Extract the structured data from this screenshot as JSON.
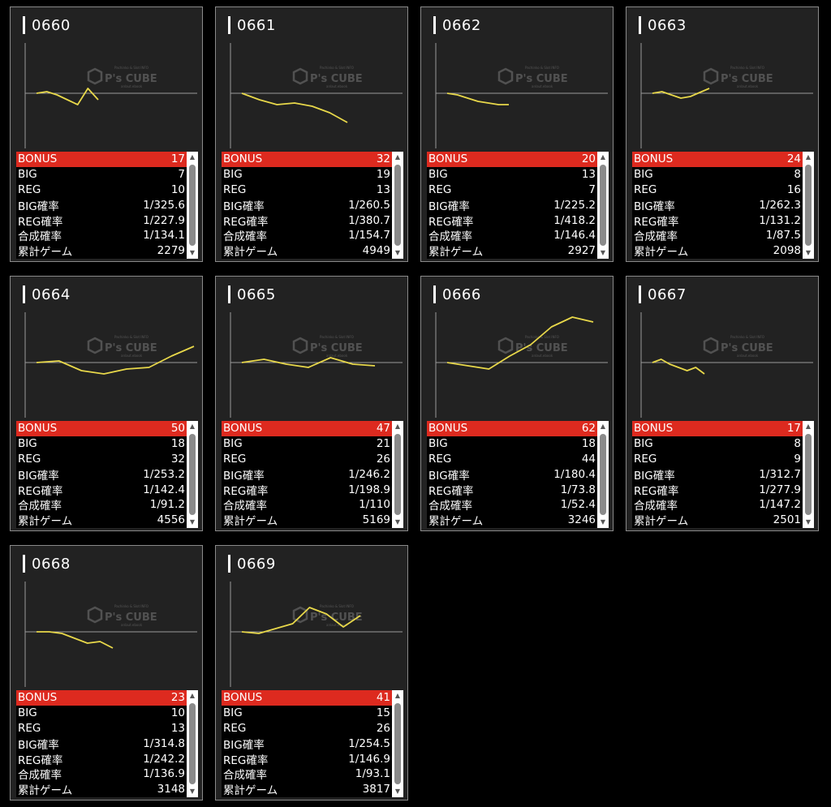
{
  "watermark": {
    "brand": "P's CUBE",
    "small_top": "Pachinko & Slot INFO",
    "small_bottom": "anlaut.ebook"
  },
  "colors": {
    "bonus_bar": "#dd2a1f",
    "line": "#e8d84a",
    "axis": "#9a9a9a"
  },
  "stat_labels": [
    "BONUS",
    "BIG",
    "REG",
    "BIG確率",
    "REG確率",
    "合成確率",
    "累計ゲーム"
  ],
  "machines": [
    {
      "id": "0660",
      "stats": [
        "17",
        "7",
        "10",
        "1/325.6",
        "1/227.9",
        "1/134.1",
        "2279"
      ],
      "trend": [
        0,
        2,
        -2,
        -8,
        -14,
        6,
        -8
      ]
    },
    {
      "id": "0661",
      "stats": [
        "32",
        "19",
        "13",
        "1/260.5",
        "1/380.7",
        "1/154.7",
        "4949"
      ],
      "trend": [
        0,
        -8,
        -14,
        -12,
        -16,
        -24,
        -36
      ]
    },
    {
      "id": "0662",
      "stats": [
        "20",
        "13",
        "7",
        "1/225.2",
        "1/418.2",
        "1/146.4",
        "2927"
      ],
      "trend": [
        0,
        -2,
        -6,
        -10,
        -12,
        -14,
        -14
      ]
    },
    {
      "id": "0663",
      "stats": [
        "24",
        "8",
        "16",
        "1/262.3",
        "1/131.2",
        "1/87.5",
        "2098"
      ],
      "trend": [
        0,
        2,
        -2,
        -6,
        -4,
        1,
        6
      ]
    },
    {
      "id": "0664",
      "stats": [
        "50",
        "18",
        "32",
        "1/253.2",
        "1/142.4",
        "1/91.2",
        "4556"
      ],
      "trend": [
        0,
        2,
        -10,
        -14,
        -8,
        -6,
        8,
        20
      ]
    },
    {
      "id": "0665",
      "stats": [
        "47",
        "21",
        "26",
        "1/246.2",
        "1/198.9",
        "1/110",
        "5169"
      ],
      "trend": [
        0,
        4,
        -2,
        -6,
        6,
        -2,
        -4
      ]
    },
    {
      "id": "0666",
      "stats": [
        "62",
        "18",
        "44",
        "1/180.4",
        "1/73.8",
        "1/52.4",
        "3246"
      ],
      "trend": [
        0,
        -4,
        -8,
        8,
        22,
        44,
        56,
        50
      ]
    },
    {
      "id": "0667",
      "stats": [
        "17",
        "8",
        "9",
        "1/312.7",
        "1/277.9",
        "1/147.2",
        "2501"
      ],
      "trend": [
        0,
        4,
        -2,
        -6,
        -10,
        -6,
        -14
      ]
    },
    {
      "id": "0668",
      "stats": [
        "23",
        "10",
        "13",
        "1/314.8",
        "1/242.2",
        "1/136.9",
        "3148"
      ],
      "trend": [
        0,
        0,
        -2,
        -8,
        -14,
        -12,
        -20
      ]
    },
    {
      "id": "0669",
      "stats": [
        "41",
        "15",
        "26",
        "1/254.5",
        "1/146.9",
        "1/93.1",
        "3817"
      ],
      "trend": [
        0,
        -2,
        4,
        10,
        30,
        22,
        6,
        20
      ]
    }
  ]
}
